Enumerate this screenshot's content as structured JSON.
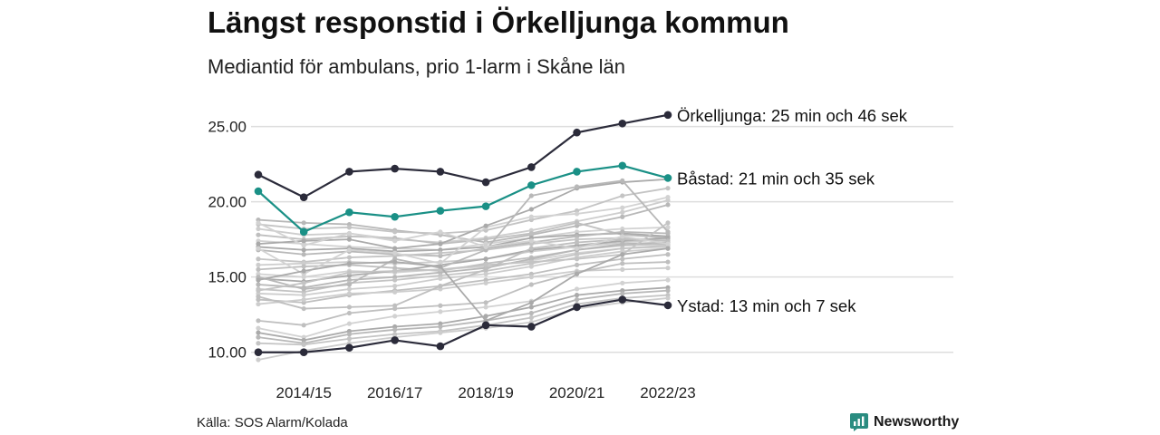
{
  "title": "Längst responstid i Örkelljunga kommun",
  "subtitle": "Mediantid för ambulans, prio 1-larm i Skåne län",
  "source": "Källa: SOS Alarm/Kolada",
  "brand": {
    "name": "Newsworthy",
    "icon": "newsworthy-logo-icon",
    "color": "#2a8c80"
  },
  "colors": {
    "highlight_dark": "#2b2b3a",
    "highlight_teal": "#1a9086",
    "background_lines": "#c8c8c8",
    "grid": "#dddddd"
  },
  "chart_data": {
    "type": "line",
    "x": [
      "2013/14",
      "2014/15",
      "2015/16",
      "2016/17",
      "2017/18",
      "2018/19",
      "2019/20",
      "2020/21",
      "2021/22",
      "2022/23"
    ],
    "x_tick_labels": [
      "2014/15",
      "2016/17",
      "2018/19",
      "2020/21",
      "2022/23"
    ],
    "y_ticks": [
      "10.00",
      "15.00",
      "20.00",
      "25.00"
    ],
    "ylim": [
      9.2,
      26.3
    ],
    "grid": "horizontal",
    "highlighted": [
      {
        "label": "Örkelljunga: 25 min och 46 sek",
        "color": "#2b2b3a",
        "values": [
          21.8,
          20.3,
          22.0,
          22.2,
          22.0,
          21.3,
          22.3,
          24.6,
          25.2,
          25.77
        ]
      },
      {
        "label": "Båstad: 21 min och 35 sek",
        "color": "#1a9086",
        "values": [
          20.7,
          18.0,
          19.3,
          19.0,
          19.4,
          19.7,
          21.1,
          22.0,
          22.4,
          21.58
        ]
      },
      {
        "label": "Ystad: 13 min och 7 sek",
        "color": "#2b2b3a",
        "values": [
          10.0,
          10.0,
          10.3,
          10.8,
          10.4,
          11.8,
          11.7,
          13.0,
          13.5,
          13.12
        ]
      }
    ],
    "background_series": [
      [
        18.8,
        18.6,
        18.5,
        18.1,
        17.8,
        17.3,
        17.8,
        18.4,
        19.0,
        19.8
      ],
      [
        18.5,
        18.2,
        18.3,
        18.0,
        17.9,
        18.1,
        18.8,
        19.4,
        20.4,
        20.9
      ],
      [
        18.2,
        17.8,
        17.9,
        17.5,
        17.3,
        17.6,
        18.1,
        18.7,
        19.3,
        20.1
      ],
      [
        17.8,
        17.5,
        17.7,
        17.6,
        17.2,
        17.5,
        17.9,
        18.6,
        17.8,
        17.6
      ],
      [
        17.4,
        17.2,
        17.0,
        16.9,
        16.8,
        17.2,
        17.6,
        18.0,
        18.2,
        18.3
      ],
      [
        17.0,
        16.8,
        16.9,
        16.7,
        16.8,
        17.0,
        17.6,
        17.8,
        17.9,
        17.7
      ],
      [
        16.8,
        16.5,
        16.7,
        16.5,
        16.4,
        16.9,
        17.3,
        17.7,
        18.0,
        17.9
      ],
      [
        16.2,
        16.0,
        16.3,
        16.4,
        16.6,
        16.8,
        17.2,
        17.5,
        17.6,
        17.4
      ],
      [
        15.8,
        15.9,
        16.0,
        15.9,
        16.0,
        16.2,
        16.7,
        17.0,
        17.3,
        17.5
      ],
      [
        15.5,
        15.7,
        15.8,
        15.6,
        15.4,
        15.9,
        16.3,
        16.8,
        17.1,
        17.2
      ],
      [
        15.2,
        15.0,
        15.4,
        15.3,
        15.5,
        15.7,
        16.1,
        16.6,
        16.9,
        17.0
      ],
      [
        14.9,
        14.7,
        15.1,
        15.4,
        15.8,
        16.2,
        16.8,
        17.1,
        17.4,
        17.6
      ],
      [
        14.5,
        14.3,
        14.8,
        15.0,
        15.3,
        15.6,
        16.2,
        16.8,
        17.2,
        17.3
      ],
      [
        14.2,
        14.0,
        14.6,
        14.8,
        15.1,
        15.4,
        15.9,
        16.5,
        16.9,
        17.1
      ],
      [
        13.9,
        13.8,
        14.2,
        14.4,
        14.9,
        15.2,
        15.7,
        16.3,
        16.7,
        16.9
      ],
      [
        13.5,
        13.3,
        13.8,
        14.1,
        14.4,
        14.8,
        15.2,
        15.8,
        16.2,
        16.5
      ],
      [
        16.9,
        15.2,
        16.8,
        16.6,
        15.9,
        18.3,
        19.0,
        19.2,
        19.6,
        20.3
      ],
      [
        17.2,
        17.4,
        17.5,
        16.9,
        17.2,
        18.4,
        19.5,
        20.9,
        21.3,
        21.5
      ],
      [
        15.0,
        14.2,
        14.5,
        16.2,
        15.6,
        16.8,
        20.4,
        21.0,
        21.4,
        18.0
      ],
      [
        14.1,
        14.6,
        15.3,
        15.4,
        15.5,
        15.8,
        16.0,
        16.2,
        16.5,
        18.6
      ],
      [
        13.2,
        13.5,
        13.9,
        14.0,
        14.2,
        14.6,
        15.0,
        15.4,
        15.5,
        15.6
      ],
      [
        12.1,
        11.8,
        12.6,
        12.9,
        13.1,
        13.3,
        14.5,
        15.3,
        15.9,
        16.0
      ],
      [
        11.6,
        11.0,
        11.9,
        12.4,
        12.7,
        13.0,
        13.4,
        14.2,
        14.6,
        14.8
      ],
      [
        11.3,
        10.8,
        11.4,
        11.7,
        11.9,
        12.4,
        13.0,
        13.8,
        14.1,
        14.3
      ],
      [
        11.0,
        10.6,
        11.2,
        11.5,
        11.7,
        12.1,
        12.6,
        13.5,
        13.9,
        14.1
      ],
      [
        10.6,
        10.5,
        10.9,
        11.2,
        11.4,
        11.8,
        12.3,
        13.2,
        13.6,
        13.8
      ],
      [
        9.5,
        10.1,
        10.6,
        11.0,
        11.3,
        11.6,
        12.0,
        12.9,
        13.3,
        13.6
      ],
      [
        13.7,
        12.9,
        13.0,
        13.1,
        14.4,
        15.5,
        16.9,
        17.3,
        17.5,
        17.4
      ],
      [
        18.6,
        17.1,
        17.9,
        17.4,
        18.0,
        17.0,
        17.4,
        16.9,
        17.7,
        17.2
      ],
      [
        14.8,
        15.4,
        15.9,
        16.0,
        15.7,
        12.1,
        13.3,
        15.2,
        16.5,
        16.9
      ]
    ]
  }
}
